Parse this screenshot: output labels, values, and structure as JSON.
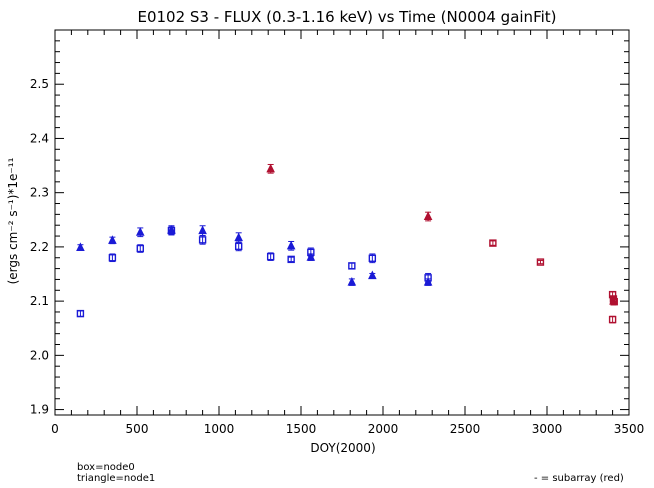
{
  "chart_data": {
    "type": "scatter",
    "title": "E0102 S3 - FLUX (0.3-1.16 keV) vs Time (N0004 gainFit)",
    "xlabel": "DOY(2000)",
    "ylabel": "(ergs cm⁻² s⁻¹)*1e⁻¹¹",
    "xlim": [
      0,
      3500
    ],
    "ylim": [
      1.89,
      2.6
    ],
    "xticks": [
      0,
      500,
      1000,
      1500,
      2000,
      2500,
      3000,
      3500
    ],
    "xtick_labels": [
      "0",
      "500",
      "1000",
      "1500",
      "2000",
      "2500",
      "3000",
      "3500"
    ],
    "yticks": [
      1.9,
      2.0,
      2.1,
      2.2,
      2.3,
      2.4,
      2.5
    ],
    "ytick_labels": [
      "1.9",
      "2.0",
      "2.1",
      "2.2",
      "2.3",
      "2.4",
      "2.5"
    ],
    "grid": false,
    "colors": {
      "blue": "#1a1ad6",
      "red": "#b01030"
    },
    "series": [
      {
        "marker": "box",
        "color_key": "blue",
        "x": [
          155,
          350,
          520,
          710,
          900,
          1120,
          1315,
          1440,
          1560,
          1810,
          1935,
          2275
        ],
        "y": [
          2.077,
          2.18,
          2.197,
          2.23,
          2.213,
          2.201,
          2.182,
          2.177,
          2.19,
          2.165,
          2.179,
          2.143
        ],
        "err": [
          0.005,
          0.007,
          0.007,
          0.008,
          0.008,
          0.008,
          0.007,
          0.004,
          0.008,
          0.005,
          0.008,
          0.008
        ]
      },
      {
        "marker": "triangle",
        "color_key": "blue",
        "x": [
          155,
          350,
          520,
          710,
          900,
          1120,
          1440,
          1560,
          1810,
          1935,
          2275
        ],
        "y": [
          2.199,
          2.212,
          2.227,
          2.231,
          2.23,
          2.217,
          2.202,
          2.181,
          2.135,
          2.147,
          2.135
        ],
        "err": [
          0.005,
          0.006,
          0.008,
          0.008,
          0.009,
          0.009,
          0.008,
          0.006,
          0.006,
          0.004,
          0.006
        ]
      },
      {
        "marker": "triangle",
        "color_key": "red",
        "x": [
          1315,
          2275,
          3405
        ],
        "y": [
          2.344,
          2.256,
          2.1
        ],
        "err": [
          0.008,
          0.008,
          0.007
        ]
      },
      {
        "marker": "box",
        "color_key": "red",
        "x": [
          2670,
          2960,
          3400,
          3405,
          3410,
          3400
        ],
        "y": [
          2.207,
          2.172,
          2.112,
          2.104,
          2.099,
          2.066
        ],
        "err": [
          0.004,
          0.003,
          0.005,
          0.004,
          0.004,
          0.006
        ]
      }
    ]
  },
  "legend": {
    "box": "box=node0",
    "triangle": "triangle=node1",
    "subarray": "- = subarray (red)"
  }
}
